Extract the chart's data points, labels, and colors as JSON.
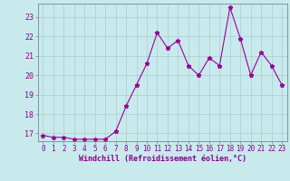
{
  "x": [
    0,
    1,
    2,
    3,
    4,
    5,
    6,
    7,
    8,
    9,
    10,
    11,
    12,
    13,
    14,
    15,
    16,
    17,
    18,
    19,
    20,
    21,
    22,
    23
  ],
  "y": [
    16.9,
    16.8,
    16.8,
    16.7,
    16.7,
    16.7,
    16.7,
    17.1,
    18.4,
    19.5,
    20.6,
    22.2,
    21.4,
    21.8,
    20.5,
    20.0,
    20.9,
    20.5,
    23.5,
    21.9,
    20.0,
    21.2,
    20.5,
    19.5
  ],
  "ylim_min": 16.6,
  "ylim_max": 23.7,
  "yticks": [
    17,
    18,
    19,
    20,
    21,
    22,
    23
  ],
  "xticks": [
    0,
    1,
    2,
    3,
    4,
    5,
    6,
    7,
    8,
    9,
    10,
    11,
    12,
    13,
    14,
    15,
    16,
    17,
    18,
    19,
    20,
    21,
    22,
    23
  ],
  "line_color": "#990099",
  "marker": "*",
  "bg_color": "#c8eaed",
  "grid_color": "#aacccc",
  "xlabel": "Windchill (Refroidissement éolien,°C)",
  "font_color": "#880088",
  "tick_fontsize": 5.5,
  "xlabel_fontsize": 6.0
}
